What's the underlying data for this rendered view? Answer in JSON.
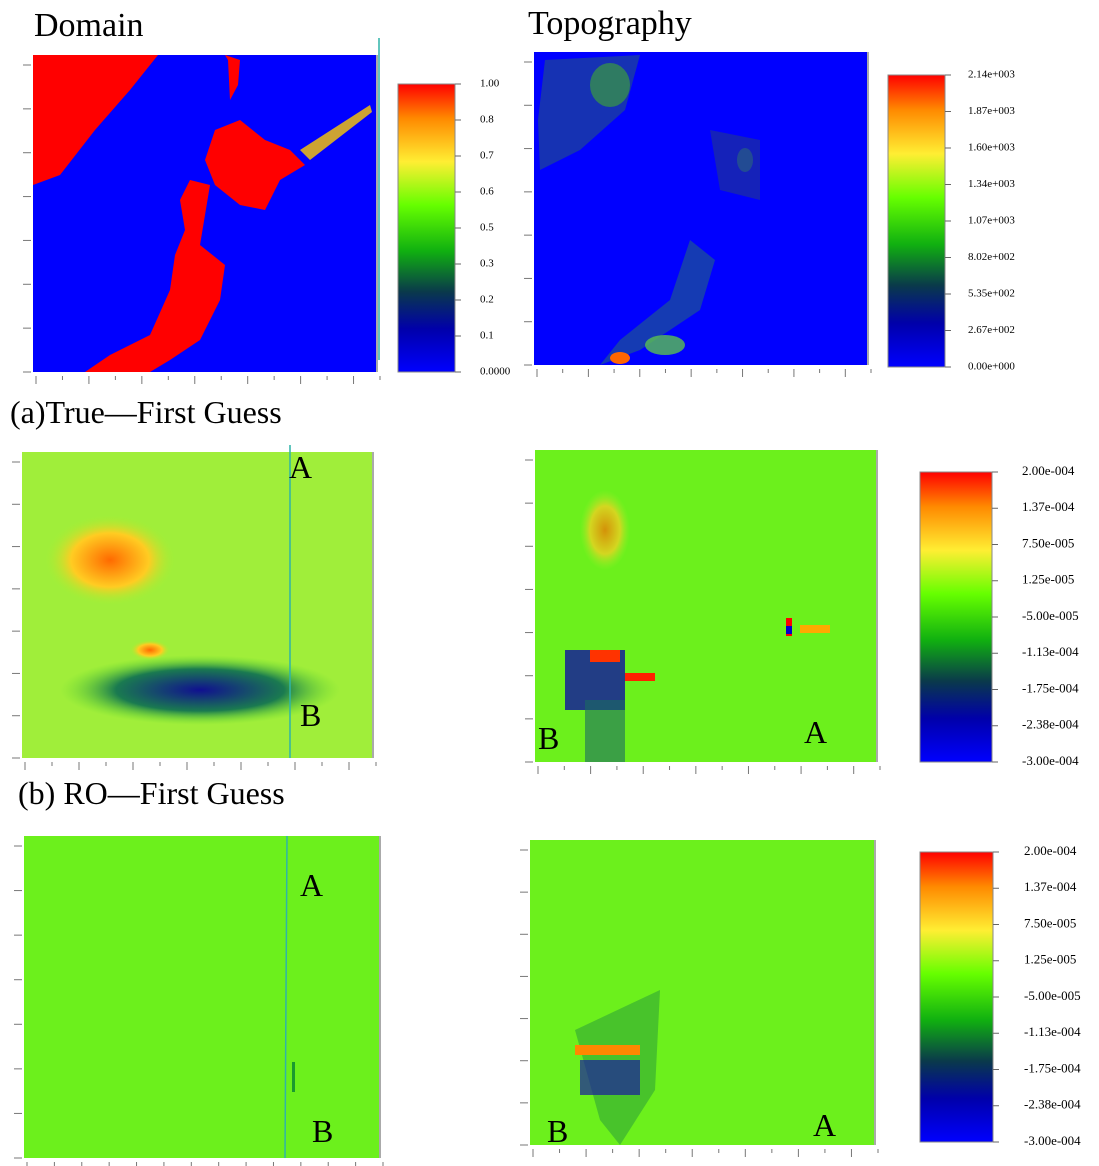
{
  "titles": [
    "Domain",
    "Topography"
  ],
  "domain_colorbar": [
    "1.00",
    "0.8",
    "0.7",
    "0.6",
    "0.5",
    "0.3",
    "0.2",
    "0.1",
    "0.0000"
  ],
  "topography_colorbar": [
    "2.14e+003",
    "1.87e+003",
    "1.60e+003",
    "1.34e+003",
    "1.07e+003",
    "8.02e+002",
    "5.35e+002",
    "2.67e+002",
    "0.00e+000"
  ],
  "rows": [
    {
      "label": "(a)True—First Guess",
      "colorbar": [
        "2.00e-004",
        "1.37e-004",
        "7.50e-005",
        "1.25e-005",
        "-5.00e-005",
        "-1.13e-004",
        "-1.75e-004",
        "-2.38e-004",
        "-3.00e-004"
      ],
      "left_points": [
        "A",
        "B"
      ],
      "right_points": [
        "B",
        "A"
      ]
    },
    {
      "label": "(b) RO—First Guess",
      "colorbar": [
        "2.00e-004",
        "1.37e-004",
        "7.50e-005",
        "1.25e-005",
        "-5.00e-005",
        "-1.13e-004",
        "-1.75e-004",
        "-2.38e-004",
        "-3.00e-004"
      ],
      "left_points": [
        "A",
        "B"
      ],
      "right_points": [
        "B",
        "A"
      ]
    }
  ]
}
